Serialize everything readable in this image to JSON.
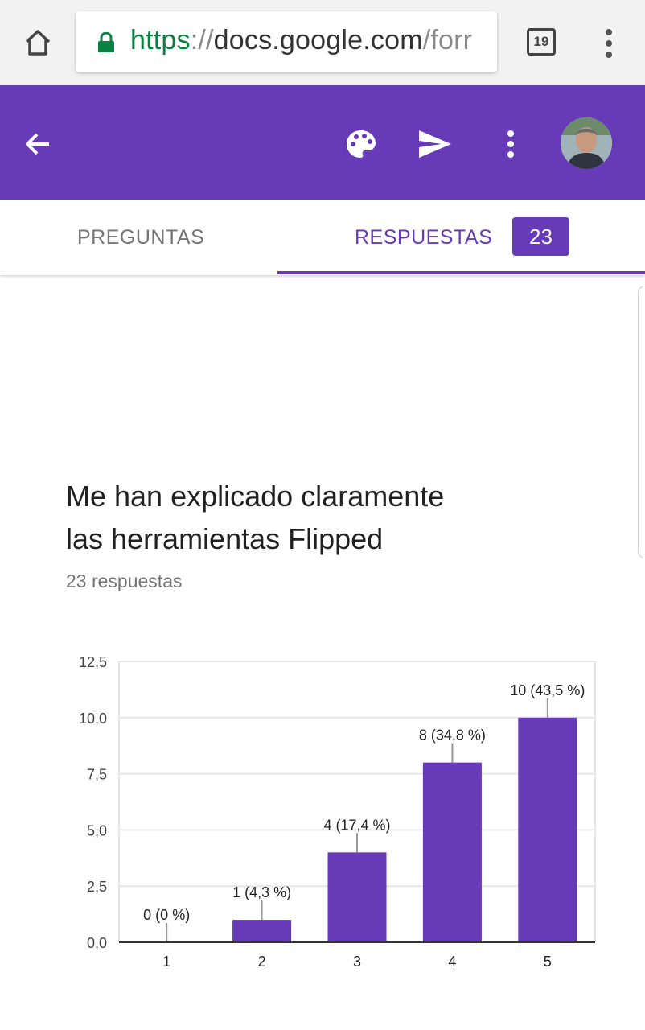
{
  "browser": {
    "url_scheme": "https",
    "url_separator": "://",
    "url_host": "docs.google.com",
    "url_path_visible": "/forr",
    "tab_count": "19",
    "colors": {
      "secure": "#0b8043"
    }
  },
  "appbar": {
    "color": "#673ab7",
    "icons": [
      "arrow-back-icon",
      "palette-icon",
      "send-icon",
      "more-vert-icon",
      "avatar"
    ]
  },
  "tabs": {
    "questions_label": "PREGUNTAS",
    "responses_label": "RESPUESTAS",
    "responses_count": "23"
  },
  "question": {
    "title_line1": "Me han explicado claramente",
    "title_line2": "las herramientas Flipped",
    "response_count": "23 respuestas"
  },
  "chart_data": {
    "type": "bar",
    "categories": [
      "1",
      "2",
      "3",
      "4",
      "5"
    ],
    "values": [
      0,
      1,
      4,
      8,
      10
    ],
    "data_labels": [
      "0 (0 %)",
      "1 (4,3 %)",
      "4 (17,4 %)",
      "8 (34,8 %)",
      "10 (43,5 %)"
    ],
    "y_ticks": [
      "0,0",
      "2,5",
      "5,0",
      "7,5",
      "10,0",
      "12,5"
    ],
    "ylim": [
      0,
      12.5
    ],
    "grid": true,
    "bar_color": "#673ab7"
  }
}
